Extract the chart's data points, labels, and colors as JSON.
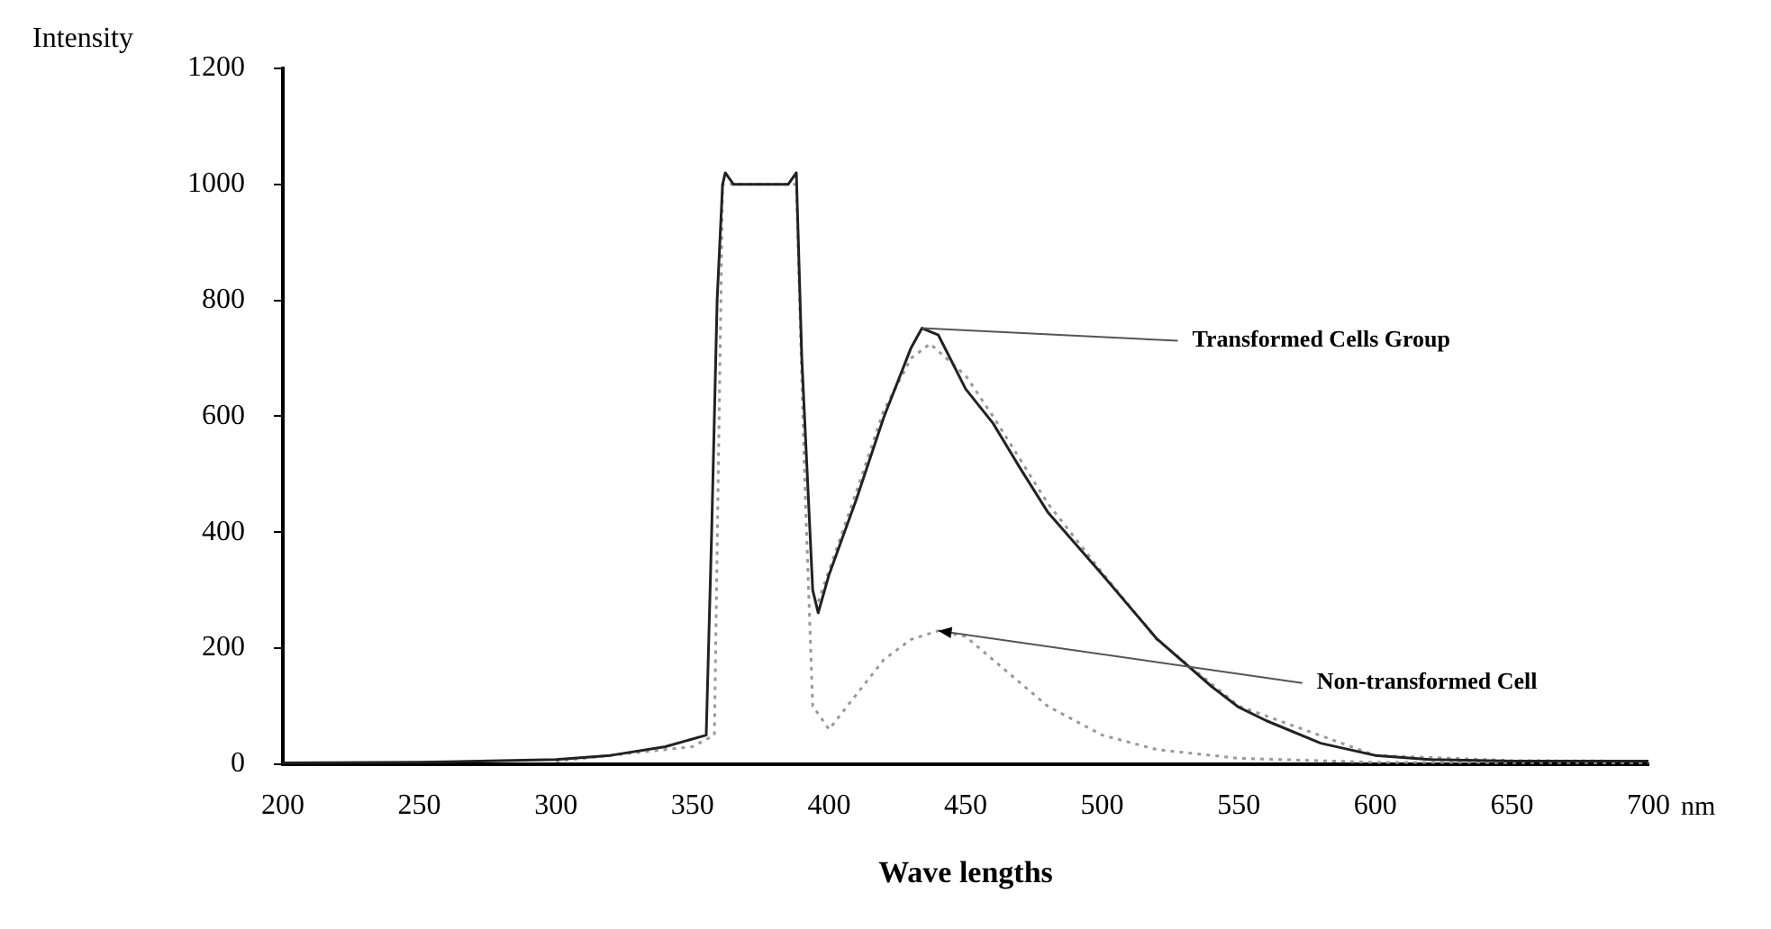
{
  "chart_data": {
    "type": "line",
    "xlabel": "Wave lengths",
    "ylabel": "Intensity",
    "xlim": [
      200,
      700
    ],
    "xticks": [
      200,
      250,
      300,
      350,
      400,
      450,
      500,
      550,
      600,
      650,
      700
    ],
    "ylim": [
      0,
      1200
    ],
    "yticks": [
      0,
      200,
      400,
      600,
      800,
      1000,
      1200
    ],
    "grid": false,
    "legend": false,
    "marker": "none",
    "series": [
      {
        "color": "#222222",
        "line_style": "solid",
        "x": [
          200,
          250,
          300,
          320,
          340,
          355,
          357,
          359,
          361,
          362,
          365,
          385,
          388,
          390,
          392,
          394,
          396,
          400,
          410,
          420,
          430,
          434,
          440,
          450,
          460,
          470,
          480,
          500,
          520,
          540,
          550,
          560,
          580,
          600,
          620,
          650,
          700
        ],
        "values": [
          2,
          3,
          8,
          15,
          30,
          50,
          400,
          800,
          1000,
          1020,
          1000,
          1000,
          1020,
          700,
          500,
          300,
          261,
          327,
          457,
          598,
          718,
          752,
          740,
          647,
          588,
          510,
          435,
          327,
          216,
          134,
          98,
          75,
          36,
          15,
          8,
          5,
          5
        ]
      },
      {
        "color": "#999999",
        "line_style": "dotted",
        "x": [
          396,
          410,
          420,
          430,
          437,
          450,
          460,
          480,
          500,
          520,
          550,
          600,
          650,
          700
        ],
        "values": [
          280,
          470,
          610,
          700,
          725,
          670,
          600,
          450,
          330,
          215,
          100,
          15,
          6,
          5
        ]
      },
      {
        "color": "#999999",
        "line_style": "dotted",
        "x": [
          300,
          350,
          358,
          361,
          363,
          386,
          388,
          391,
          394,
          400,
          410,
          420,
          430,
          440,
          450,
          460,
          470,
          480,
          500,
          520,
          550,
          600,
          700
        ],
        "values": [
          5,
          30,
          50,
          1000,
          1000,
          1000,
          1000,
          500,
          100,
          60,
          120,
          180,
          215,
          230,
          220,
          180,
          140,
          100,
          50,
          25,
          10,
          3,
          2
        ]
      }
    ],
    "annotations": [
      {
        "text": "Transformed Cells Group",
        "x": 434,
        "y": 752
      },
      {
        "text": "Non-transformed Cell",
        "x": 440,
        "y": 230
      },
      "nm"
    ]
  }
}
